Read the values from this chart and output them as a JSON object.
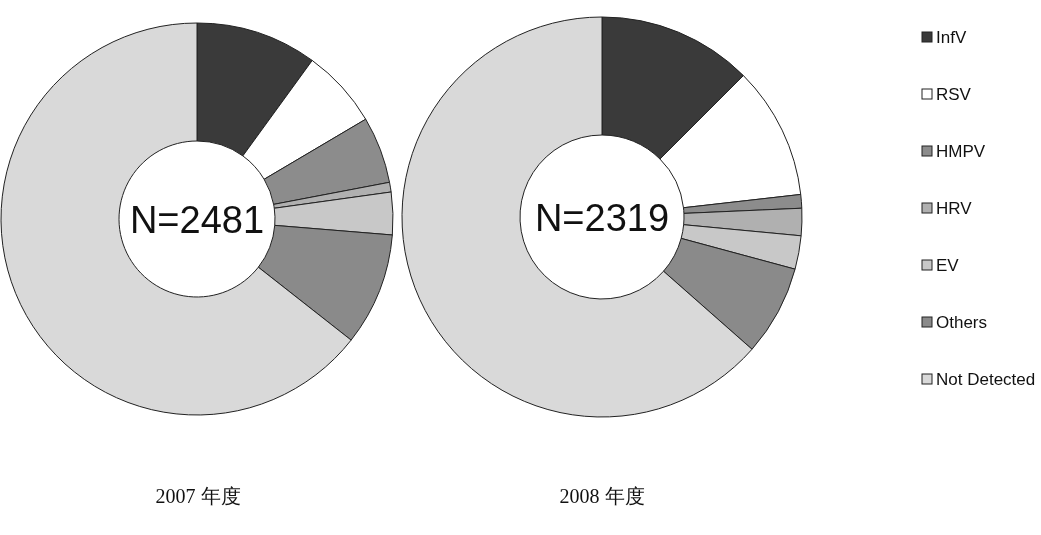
{
  "chart_data": [
    {
      "type": "donut",
      "title": "2007 年度",
      "annotations": [
        "N=2481"
      ],
      "legend": "right",
      "categories": [
        "InfV",
        "RSV",
        "HMPV",
        "HRV",
        "EV",
        "Others",
        "Not Detected"
      ],
      "values": [
        10,
        6.5,
        5.5,
        0.8,
        3.5,
        9.3,
        64.4
      ],
      "colors": [
        "#3a3a3a",
        "#ffffff",
        "#8c8c8c",
        "#b0b0b0",
        "#c8c8c8",
        "#8a8a8a",
        "#d9d9d9"
      ]
    },
    {
      "type": "donut",
      "title": "2008 年度",
      "annotations": [
        "N=2319"
      ],
      "categories": [
        null,
        null,
        null,
        null,
        null,
        null,
        null
      ],
      "values": [
        12.5,
        10.7,
        1.1,
        2.2,
        2.7,
        7.3,
        63.5
      ],
      "colors": [
        "#3a3a3a",
        "#ffffff",
        "#8c8c8c",
        "#b0b0b0",
        "#c8c8c8",
        "#8a8a8a",
        "#d9d9d9"
      ]
    }
  ]
}
